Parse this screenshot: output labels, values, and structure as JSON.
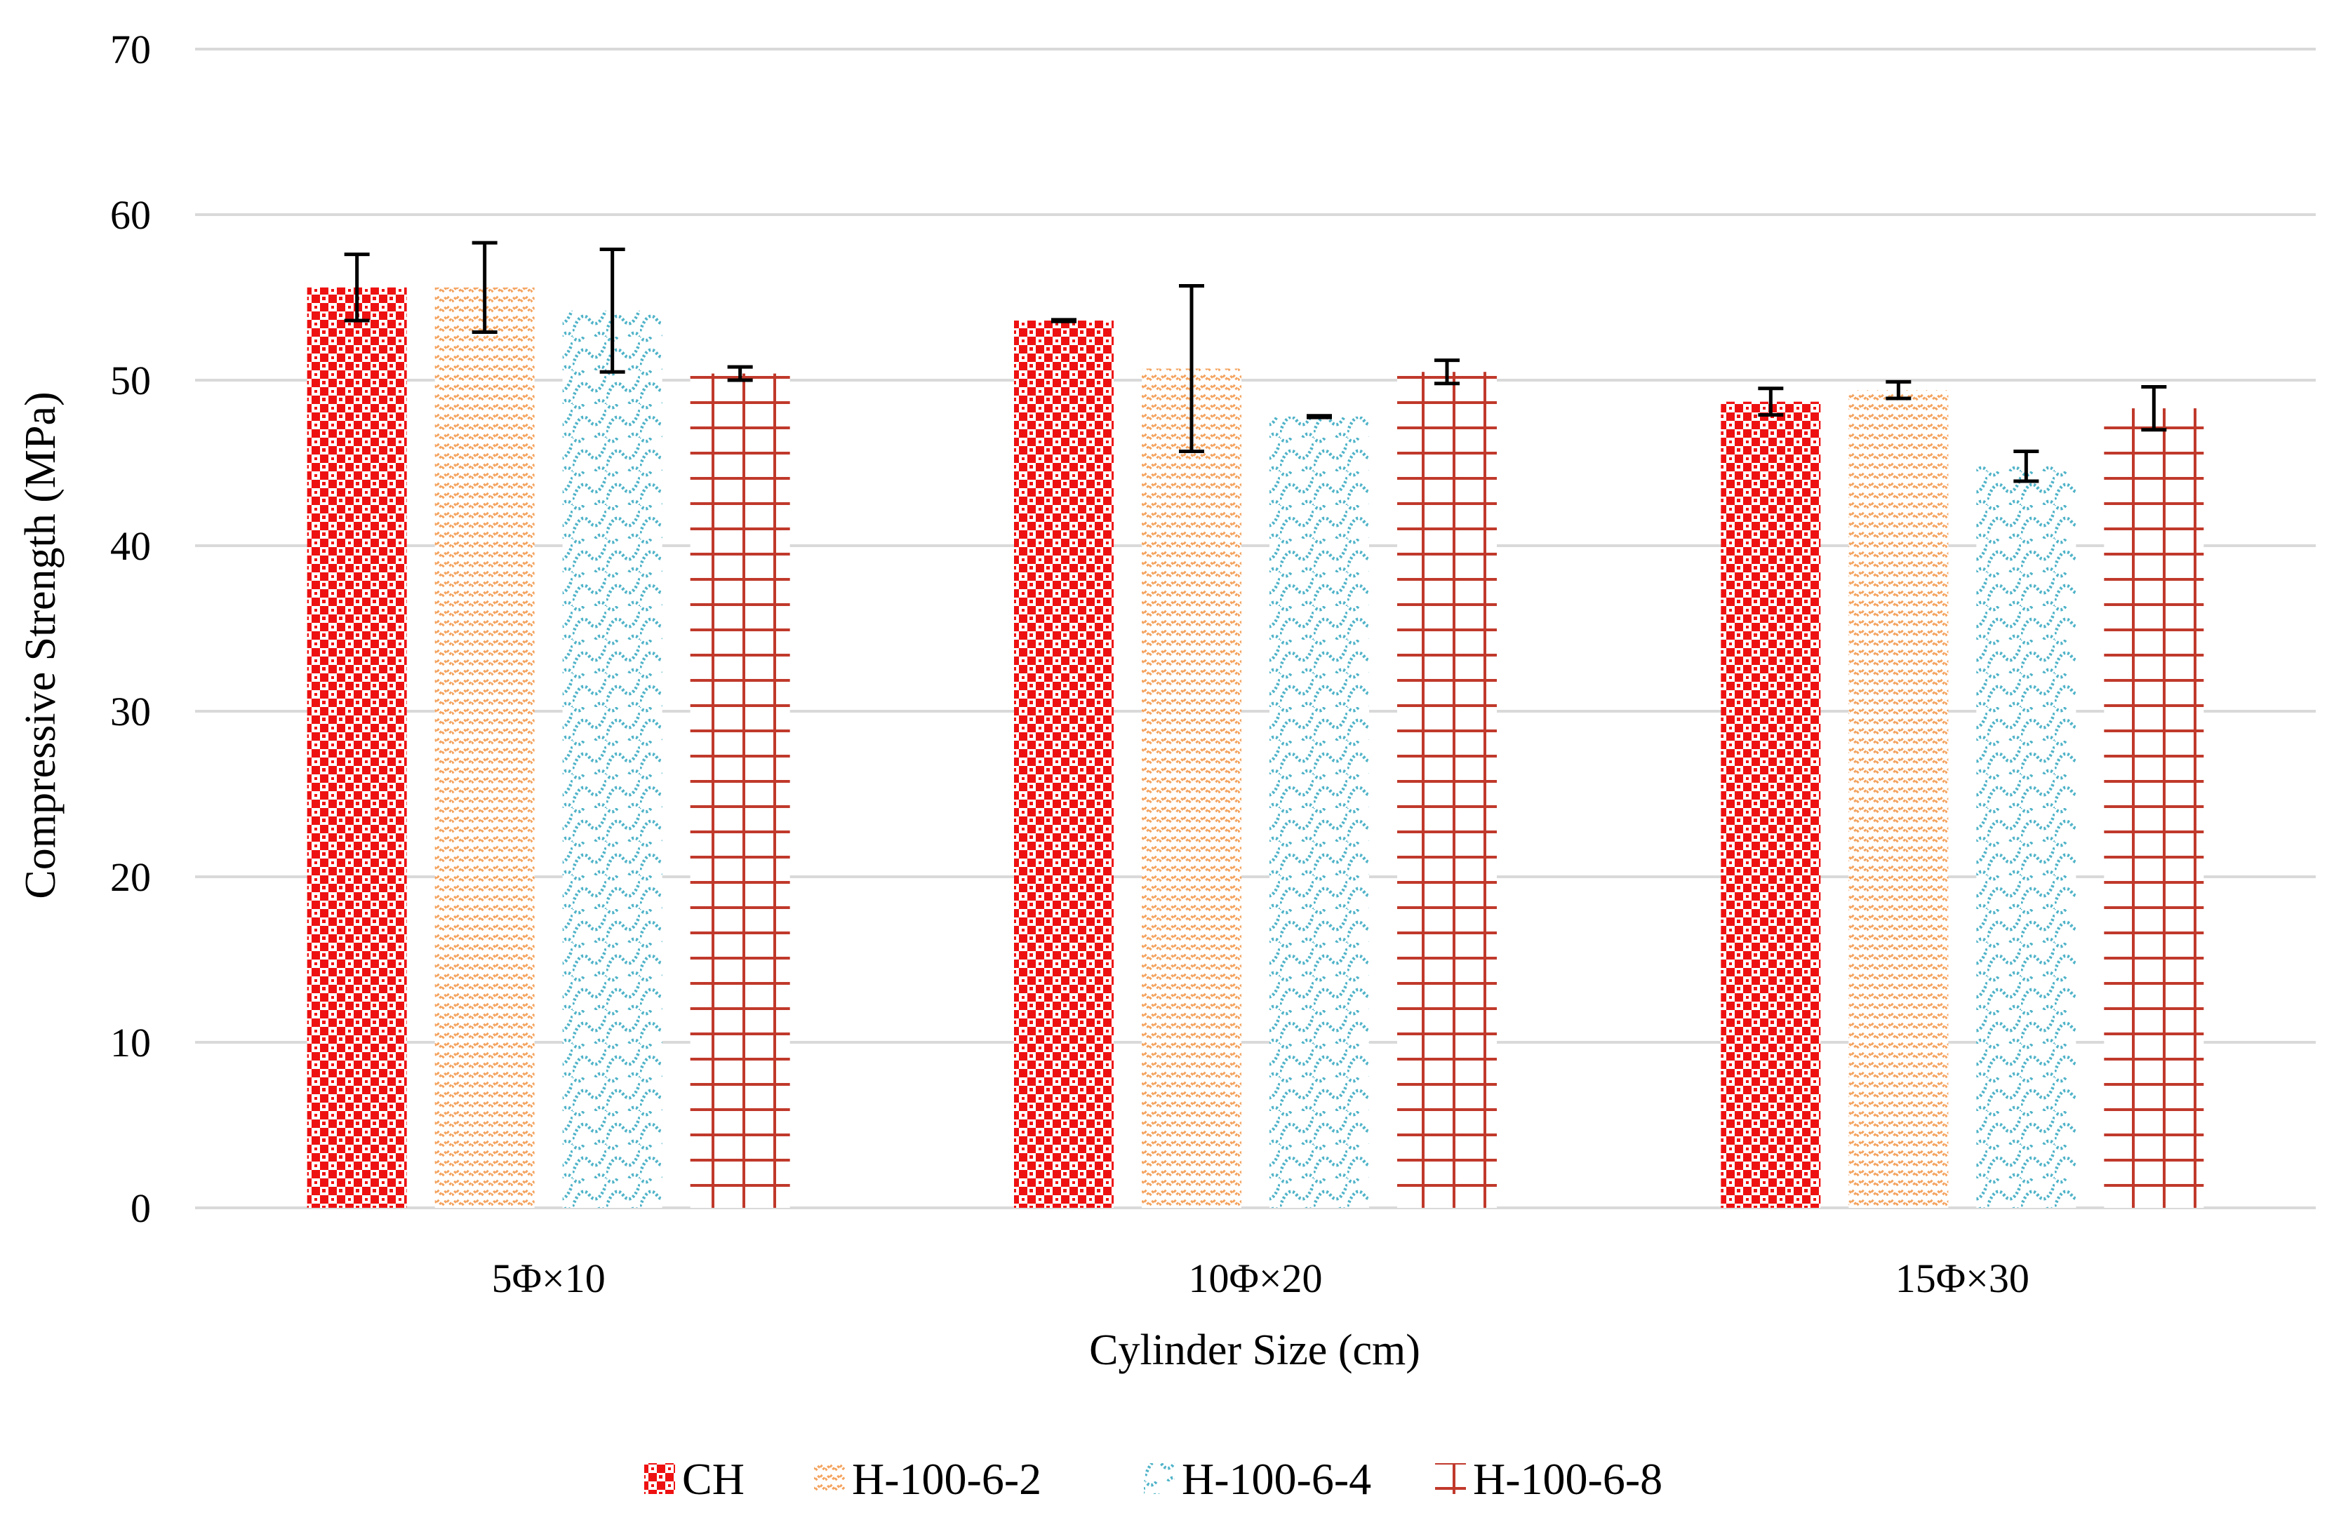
{
  "chart_data": {
    "type": "bar",
    "title": "",
    "xlabel": "Cylinder Size (cm)",
    "ylabel": "Compressive Strength (MPa)",
    "ylim": [
      0,
      70
    ],
    "yticks": [
      "0",
      "10",
      "20",
      "30",
      "40",
      "50",
      "60",
      "70"
    ],
    "grid": true,
    "legend_position": "bottom",
    "categories": [
      "5Φ×10",
      "10Φ×20",
      "15Φ×30"
    ],
    "series": [
      {
        "name": "CH",
        "color": "#ee1111",
        "pattern": "checker",
        "values": [
          55.6,
          53.6,
          48.7
        ],
        "errors": [
          2.0,
          0.05,
          0.8
        ]
      },
      {
        "name": "H-100-6-2",
        "color": "#f4a460",
        "pattern": "zigzag",
        "values": [
          55.6,
          50.7,
          49.4
        ],
        "errors": [
          2.7,
          5.0,
          0.5
        ]
      },
      {
        "name": "H-100-6-4",
        "color": "#4fb3c8",
        "pattern": "wave",
        "values": [
          54.2,
          47.8,
          44.8
        ],
        "errors": [
          3.7,
          0.05,
          0.9
        ]
      },
      {
        "name": "H-100-6-8",
        "color": "#c0392b",
        "pattern": "grid",
        "values": [
          50.4,
          50.5,
          48.3
        ],
        "errors": [
          0.4,
          0.7,
          1.3
        ]
      }
    ]
  }
}
